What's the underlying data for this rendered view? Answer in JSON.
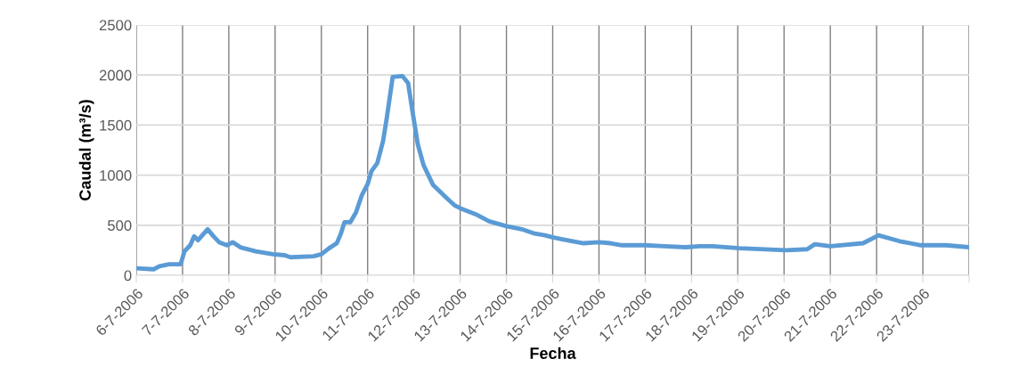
{
  "chart_data": {
    "type": "line",
    "xlabel": "Fecha",
    "ylabel": "Caudal (m³/s)",
    "xlim": [
      "2006-07-06",
      "2006-07-24"
    ],
    "xticks": [
      {
        "value": "2006-07-06",
        "label": "6-7-2006"
      },
      {
        "value": "2006-07-07",
        "label": "7-7-2006"
      },
      {
        "value": "2006-07-08",
        "label": "8-7-2006"
      },
      {
        "value": "2006-07-09",
        "label": "9-7-2006"
      },
      {
        "value": "2006-07-10",
        "label": "10-7-2006"
      },
      {
        "value": "2006-07-11",
        "label": "11-7-2006"
      },
      {
        "value": "2006-07-12",
        "label": "12-7-2006"
      },
      {
        "value": "2006-07-13",
        "label": "13-7-2006"
      },
      {
        "value": "2006-07-14",
        "label": "14-7-2006"
      },
      {
        "value": "2006-07-15",
        "label": "15-7-2006"
      },
      {
        "value": "2006-07-16",
        "label": "16-7-2006"
      },
      {
        "value": "2006-07-17",
        "label": "17-7-2006"
      },
      {
        "value": "2006-07-18",
        "label": "18-7-2006"
      },
      {
        "value": "2006-07-19",
        "label": "19-7-2006"
      },
      {
        "value": "2006-07-20",
        "label": "20-7-2006"
      },
      {
        "value": "2006-07-21",
        "label": "21-7-2006"
      },
      {
        "value": "2006-07-22",
        "label": "22-7-2006"
      },
      {
        "value": "2006-07-23",
        "label": "23-7-2006"
      },
      {
        "value": "2006-07-24",
        "label": null
      }
    ],
    "ylim": [
      0,
      2500
    ],
    "yticks": [
      0,
      500,
      1000,
      1500,
      2000,
      2500
    ],
    "grid": true,
    "marker": "none",
    "line_style": "solid",
    "x": [
      "2006-07-06T00:00",
      "2006-07-06T09:00",
      "2006-07-06T12:00",
      "2006-07-06T17:00",
      "2006-07-06T23:00",
      "2006-07-07T01:00",
      "2006-07-07T04:00",
      "2006-07-07T06:00",
      "2006-07-07T08:00",
      "2006-07-07T13:00",
      "2006-07-07T16:00",
      "2006-07-07T19:00",
      "2006-07-07T23:00",
      "2006-07-08T02:00",
      "2006-07-08T06:00",
      "2006-07-08T14:00",
      "2006-07-08T23:00",
      "2006-07-09T05:00",
      "2006-07-09T08:00",
      "2006-07-09T20:00",
      "2006-07-10T00:00",
      "2006-07-10T04:00",
      "2006-07-10T08:00",
      "2006-07-10T10:00",
      "2006-07-10T12:00",
      "2006-07-10T15:00",
      "2006-07-10T18:00",
      "2006-07-10T21:00",
      "2006-07-11T00:00",
      "2006-07-11T02:00",
      "2006-07-11T05:00",
      "2006-07-11T08:00",
      "2006-07-11T10:00",
      "2006-07-11T13:00",
      "2006-07-11T18:00",
      "2006-07-11T21:00",
      "2006-07-11T23:00",
      "2006-07-12T02:00",
      "2006-07-12T05:00",
      "2006-07-12T10:00",
      "2006-07-12T16:00",
      "2006-07-12T21:00",
      "2006-07-13T00:00",
      "2006-07-13T08:00",
      "2006-07-13T15:00",
      "2006-07-14T00:00",
      "2006-07-14T08:00",
      "2006-07-14T14:00",
      "2006-07-14T20:00",
      "2006-07-15T00:00",
      "2006-07-15T05:00",
      "2006-07-15T16:00",
      "2006-07-16T00:00",
      "2006-07-16T06:00",
      "2006-07-16T12:00",
      "2006-07-17T00:00",
      "2006-07-17T10:00",
      "2006-07-17T21:00",
      "2006-07-18T04:00",
      "2006-07-18T11:00",
      "2006-07-19T01:00",
      "2006-07-20T01:00",
      "2006-07-20T12:00",
      "2006-07-20T16:00",
      "2006-07-21T00:00",
      "2006-07-21T17:00",
      "2006-07-22T01:00",
      "2006-07-22T12:00",
      "2006-07-22T23:00",
      "2006-07-23T12:00",
      "2006-07-24T00:00"
    ],
    "series": [
      {
        "color": "#5b9bd5",
        "values": [
          70,
          60,
          90,
          110,
          110,
          240,
          300,
          390,
          350,
          460,
          390,
          330,
          300,
          330,
          280,
          240,
          210,
          200,
          180,
          190,
          210,
          270,
          320,
          410,
          530,
          530,
          630,
          800,
          910,
          1040,
          1120,
          1340,
          1580,
          1980,
          1990,
          1920,
          1670,
          1310,
          1100,
          900,
          790,
          700,
          670,
          610,
          540,
          490,
          460,
          420,
          400,
          380,
          360,
          320,
          330,
          320,
          300,
          300,
          290,
          280,
          290,
          290,
          270,
          250,
          260,
          310,
          290,
          320,
          400,
          340,
          300,
          300,
          280
        ]
      }
    ]
  }
}
